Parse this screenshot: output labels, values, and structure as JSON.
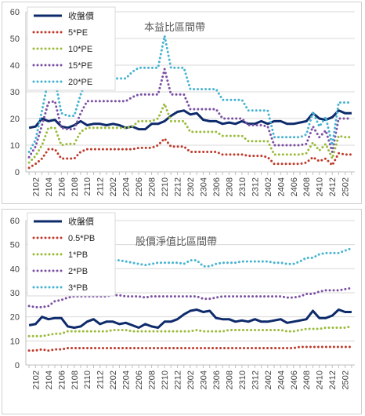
{
  "chart_data": [
    {
      "type": "line",
      "title": "本益比區間帶",
      "ylim": [
        0,
        60
      ],
      "yticks": [
        0,
        10,
        20,
        30,
        40,
        50,
        60
      ],
      "grid": true,
      "legend_position": "top-left",
      "x": [
        "2101",
        "2102",
        "2103",
        "2104",
        "2105",
        "2106",
        "2107",
        "2108",
        "2109",
        "2110",
        "2111",
        "2112",
        "2201",
        "2202",
        "2203",
        "2204",
        "2205",
        "2206",
        "2207",
        "2208",
        "2209",
        "2210",
        "2211",
        "2212",
        "2301",
        "2302",
        "2303",
        "2304",
        "2305",
        "2306",
        "2307",
        "2308",
        "2309",
        "2310",
        "2311",
        "2312",
        "2401",
        "2402",
        "2403",
        "2404",
        "2405",
        "2406",
        "2407",
        "2408",
        "2409",
        "2410",
        "2411",
        "2412",
        "2501",
        "2502",
        "2503"
      ],
      "x_tick_labels": [
        "2102",
        "2104",
        "2106",
        "2108",
        "2110",
        "2112",
        "2202",
        "2204",
        "2206",
        "2208",
        "2210",
        "2212",
        "2302",
        "2304",
        "2306",
        "2308",
        "2310",
        "2312",
        "2402",
        "2404",
        "2406",
        "2408",
        "2410",
        "2412",
        "2502"
      ],
      "series": [
        {
          "name": "收盤價",
          "color": "#0d2a6b",
          "style": "solid",
          "values": [
            16.5,
            17,
            20,
            19,
            19.5,
            17,
            16.5,
            17.5,
            19,
            17.5,
            18,
            18,
            17.5,
            18,
            17.5,
            16.5,
            17,
            16,
            16,
            18,
            18,
            19,
            21,
            22.5,
            23,
            21.5,
            22,
            19.5,
            19,
            19,
            18,
            18.5,
            18,
            19,
            18,
            18,
            19,
            18,
            19,
            19,
            18,
            18,
            18.5,
            19,
            22,
            20,
            19.5,
            20.5,
            23,
            22,
            22
          ]
        },
        {
          "name": "5*PE",
          "color": "#c0392b",
          "style": "dotted",
          "values": [
            1.5,
            3,
            5,
            8.5,
            8.5,
            5,
            5,
            5,
            7.5,
            8.5,
            8.5,
            8.5,
            8.5,
            8.5,
            8.5,
            8.5,
            8.5,
            9,
            9,
            9,
            10,
            12.5,
            9.5,
            9.5,
            9.5,
            7.5,
            7.5,
            7.5,
            7.5,
            7.5,
            6.5,
            6.5,
            6.5,
            6.5,
            6,
            6,
            6,
            5.5,
            3,
            3,
            3,
            3,
            3,
            3.5,
            5.5,
            4,
            5,
            2.5,
            7,
            6.5,
            6.5
          ]
        },
        {
          "name": "10*PE",
          "color": "#9bbb3b",
          "style": "dotted",
          "values": [
            3.5,
            6,
            10,
            16.5,
            16.5,
            10,
            10.5,
            10.5,
            15,
            16.5,
            16.5,
            16.5,
            16.5,
            16.5,
            16.5,
            16.5,
            17,
            19,
            19,
            19,
            20,
            25.5,
            19,
            19,
            19,
            15,
            15,
            15,
            15,
            15,
            13.5,
            13.5,
            13.5,
            13.5,
            11.5,
            11.5,
            11.5,
            11.5,
            6.5,
            6.5,
            6.5,
            6.5,
            6.5,
            7,
            11,
            8,
            10.5,
            5,
            13.5,
            13,
            13
          ]
        },
        {
          "name": "15*PE",
          "color": "#7b4fa3",
          "style": "dotted",
          "values": [
            5.5,
            9.5,
            17.5,
            26,
            26.5,
            16.5,
            16,
            16,
            22,
            26.5,
            26.5,
            26.5,
            26.5,
            26.5,
            26.5,
            26.5,
            28,
            29,
            29,
            29,
            29,
            38.5,
            29,
            29,
            29,
            23.5,
            23.5,
            23.5,
            23.5,
            23.5,
            20,
            20,
            20,
            20,
            17.5,
            17.5,
            17.5,
            17,
            10,
            10,
            10,
            10,
            10,
            10.5,
            17,
            13,
            15.5,
            7.5,
            20,
            20,
            20
          ]
        },
        {
          "name": "20*PE",
          "color": "#45b3d1",
          "style": "dotted",
          "values": [
            7.5,
            12,
            23,
            34.5,
            35,
            22,
            21,
            21,
            29,
            35,
            35,
            35,
            35,
            35,
            35,
            35,
            37.5,
            39,
            39,
            39,
            39,
            51,
            39,
            39,
            39,
            31,
            31,
            31,
            31,
            31,
            27,
            27,
            27,
            27,
            23,
            23,
            23,
            23,
            13,
            13,
            13,
            13,
            13,
            14,
            22.5,
            17,
            20.5,
            10,
            26,
            26,
            26
          ]
        }
      ]
    },
    {
      "type": "line",
      "title": "股價淨值比區間帶",
      "ylim": [
        0,
        60
      ],
      "yticks": [
        0,
        10,
        20,
        30,
        40,
        50,
        60
      ],
      "grid": true,
      "legend_position": "top-left",
      "x": [
        "2101",
        "2102",
        "2103",
        "2104",
        "2105",
        "2106",
        "2107",
        "2108",
        "2109",
        "2110",
        "2111",
        "2112",
        "2201",
        "2202",
        "2203",
        "2204",
        "2205",
        "2206",
        "2207",
        "2208",
        "2209",
        "2210",
        "2211",
        "2212",
        "2301",
        "2302",
        "2303",
        "2304",
        "2305",
        "2306",
        "2307",
        "2308",
        "2309",
        "2310",
        "2311",
        "2312",
        "2401",
        "2402",
        "2403",
        "2404",
        "2405",
        "2406",
        "2407",
        "2408",
        "2409",
        "2410",
        "2411",
        "2412",
        "2501",
        "2502",
        "2503"
      ],
      "x_tick_labels": [
        "2102",
        "2104",
        "2106",
        "2108",
        "2110",
        "2112",
        "2202",
        "2204",
        "2206",
        "2208",
        "2210",
        "2212",
        "2302",
        "2304",
        "2306",
        "2308",
        "2310",
        "2312",
        "2402",
        "2404",
        "2406",
        "2408",
        "2410",
        "2412",
        "2502"
      ],
      "series": [
        {
          "name": "收盤價",
          "color": "#0d2a6b",
          "style": "solid",
          "values": [
            16.5,
            17,
            20,
            19,
            19.5,
            19.5,
            16,
            15.5,
            16,
            18,
            19,
            17,
            18,
            18,
            17,
            17.5,
            16.5,
            15.5,
            17,
            16,
            15.5,
            18,
            18,
            19,
            21,
            22.5,
            23,
            22,
            22.5,
            19.5,
            19,
            19,
            18,
            18.5,
            18,
            19,
            18,
            18,
            18.5,
            19,
            17.5,
            18,
            18.5,
            19,
            22.5,
            19.5,
            19.5,
            20.5,
            23,
            22,
            22
          ]
        },
        {
          "name": "0.5*PB",
          "color": "#c0392b",
          "style": "dotted",
          "values": [
            6,
            6,
            6.5,
            6,
            6.5,
            6.5,
            7,
            7,
            7,
            7,
            7,
            7,
            7,
            7,
            7,
            7,
            7,
            7,
            7,
            7,
            7,
            7,
            7,
            7,
            7,
            7,
            7,
            7,
            7,
            7,
            7,
            7,
            7,
            7,
            7,
            7,
            7,
            7,
            7,
            7,
            7,
            7,
            7.5,
            7.5,
            7.5,
            7.5,
            7.5,
            7.5,
            7.5,
            7.5,
            7.5
          ]
        },
        {
          "name": "1*PB",
          "color": "#9bbb3b",
          "style": "dotted",
          "values": [
            12,
            12,
            12,
            12.5,
            13,
            13,
            14,
            14,
            14,
            14,
            14,
            14,
            14,
            14.5,
            14.5,
            14.5,
            14,
            14,
            14,
            14,
            14,
            14,
            14,
            14,
            14,
            14,
            14.5,
            14,
            14,
            14,
            14,
            14.5,
            14.5,
            14.5,
            14.5,
            14.5,
            14.5,
            14.5,
            14.5,
            14.5,
            14,
            14,
            14.5,
            15,
            15,
            15,
            15.5,
            15.5,
            15.5,
            15.5,
            16
          ]
        },
        {
          "name": "2*PB",
          "color": "#7b4fa3",
          "style": "dotted",
          "values": [
            24.5,
            24,
            24,
            24.5,
            26.5,
            27,
            28,
            28.5,
            28.5,
            28.5,
            28.5,
            28.5,
            28.5,
            29,
            29,
            28.5,
            28.5,
            28.5,
            28,
            28.5,
            28.5,
            28.5,
            28.5,
            28.5,
            28.5,
            28.5,
            28.5,
            27.5,
            27.5,
            28,
            28.5,
            28.5,
            28.5,
            28.5,
            28.5,
            28.5,
            28.5,
            28.5,
            28.5,
            28.5,
            28,
            28,
            28.5,
            29.5,
            29.5,
            30.5,
            31,
            31,
            31,
            31.5,
            32
          ]
        },
        {
          "name": "3*PB",
          "color": "#45b3d1",
          "style": "dotted",
          "values": [
            36,
            36,
            36,
            37,
            39.5,
            40.5,
            42,
            42.5,
            42.5,
            42.5,
            42.5,
            42.5,
            43,
            43.5,
            43.5,
            43,
            42.5,
            42,
            41.5,
            42,
            42.5,
            42.5,
            42.5,
            42.5,
            42,
            43.5,
            43.5,
            41,
            41,
            42,
            42.5,
            42.5,
            42.5,
            43,
            43,
            43,
            43,
            43,
            42.5,
            42.5,
            42,
            42,
            43,
            44.5,
            44.5,
            46,
            46.5,
            46.5,
            46.5,
            47.5,
            48.5
          ]
        }
      ]
    }
  ]
}
